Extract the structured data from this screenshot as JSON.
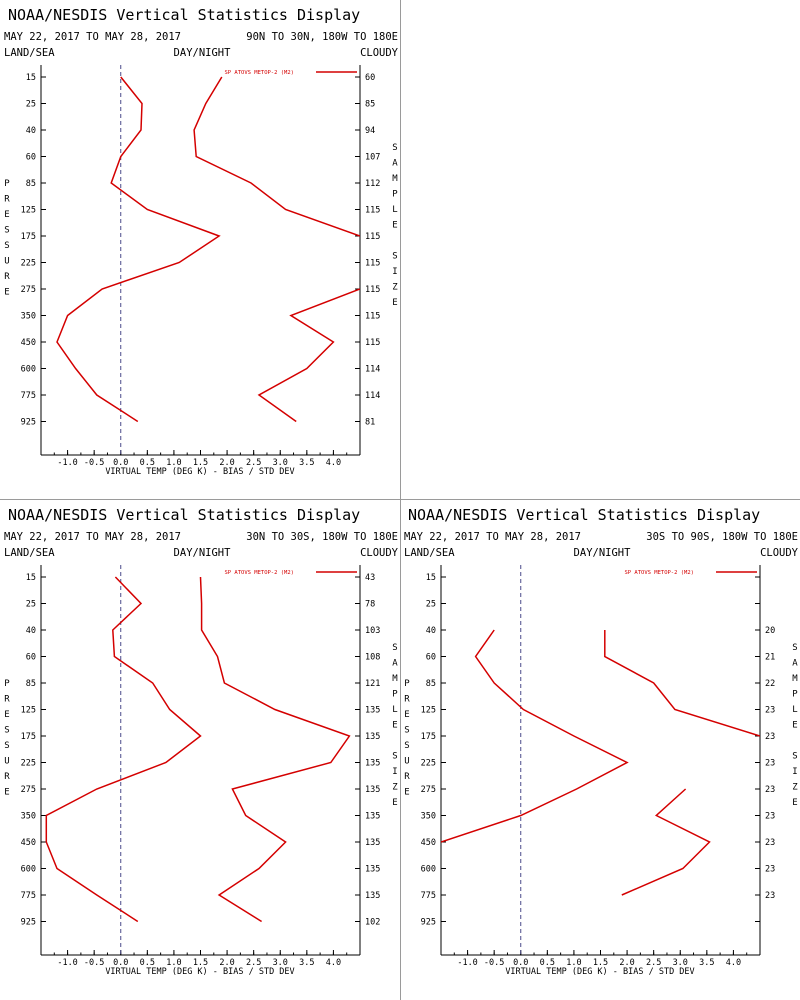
{
  "header": {
    "title": "NOAA/NESDIS Vertical Statistics Display",
    "left_label": "LAND/SEA",
    "mid_label": "DAY/NIGHT",
    "right_label": "CLOUDY",
    "date_range": "MAY 22, 2017 TO MAY 28, 2017"
  },
  "colors": {
    "series": "#d40000",
    "zero_line": "#4a4a8a",
    "axis": "#000000"
  },
  "chart_data": [
    {
      "type": "line",
      "region": "90N TO 30N, 180W TO 180E",
      "legend": "SP ATOVS METOP-2 (M2)",
      "xlabel": "VIRTUAL TEMP (DEG K) - BIAS / STD DEV",
      "ylabel": "PRESSURE",
      "y2label": "SAMPLE SIZE",
      "xlim": [
        -1.5,
        4.5
      ],
      "xticks": [
        -1.0,
        -0.5,
        0.0,
        0.5,
        1.0,
        1.5,
        2.0,
        2.5,
        3.0,
        3.5,
        4.0
      ],
      "pressure_levels": [
        15,
        25,
        40,
        60,
        85,
        125,
        175,
        225,
        275,
        350,
        450,
        600,
        775,
        925
      ],
      "sample_size": [
        "60",
        "85",
        "94",
        "107",
        "112",
        "115",
        "115",
        "115",
        "115",
        "115",
        "115",
        "114",
        "114",
        "81"
      ],
      "series": [
        {
          "role": "bias",
          "pressure": [
            15,
            25,
            40,
            60,
            85,
            125,
            175,
            225,
            275,
            350,
            450,
            600,
            775,
            925
          ],
          "values": [
            0.0,
            0.4,
            0.38,
            0.0,
            -0.18,
            0.5,
            1.85,
            1.1,
            -0.35,
            -1.0,
            -1.2,
            -0.85,
            -0.45,
            0.32
          ]
        },
        {
          "role": "std_dev",
          "pressure": [
            15,
            25,
            40,
            60,
            85,
            125,
            175,
            225,
            275,
            350,
            450,
            600,
            775,
            925
          ],
          "values": [
            1.9,
            1.6,
            1.38,
            1.42,
            2.45,
            3.1,
            4.5,
            null,
            4.5,
            3.2,
            4.0,
            3.5,
            2.6,
            3.3
          ]
        }
      ]
    },
    {
      "type": "line",
      "region": "30N TO 30S, 180W TO 180E",
      "legend": "SP ATOVS METOP-2 (M2)",
      "xlabel": "VIRTUAL TEMP (DEG K) - BIAS / STD DEV",
      "ylabel": "PRESSURE",
      "y2label": "SAMPLE SIZE",
      "xlim": [
        -1.5,
        4.5
      ],
      "xticks": [
        -1.0,
        -0.5,
        0.0,
        0.5,
        1.0,
        1.5,
        2.0,
        2.5,
        3.0,
        3.5,
        4.0
      ],
      "pressure_levels": [
        15,
        25,
        40,
        60,
        85,
        125,
        175,
        225,
        275,
        350,
        450,
        600,
        775,
        925
      ],
      "sample_size": [
        "43",
        "78",
        "103",
        "108",
        "121",
        "135",
        "135",
        "135",
        "135",
        "135",
        "135",
        "135",
        "135",
        "102"
      ],
      "series": [
        {
          "role": "bias",
          "pressure": [
            15,
            25,
            40,
            60,
            85,
            125,
            175,
            225,
            275,
            350,
            450,
            600,
            775,
            925
          ],
          "values": [
            -0.1,
            0.38,
            -0.15,
            -0.12,
            0.6,
            0.92,
            1.5,
            0.85,
            -0.45,
            -1.4,
            -1.4,
            -1.2,
            -0.45,
            0.32
          ]
        },
        {
          "role": "std_dev",
          "pressure": [
            15,
            25,
            40,
            60,
            85,
            125,
            175,
            225,
            275,
            350,
            450,
            600,
            775,
            925
          ],
          "values": [
            1.5,
            1.52,
            1.52,
            1.82,
            1.95,
            2.9,
            4.3,
            3.95,
            2.1,
            2.35,
            3.1,
            2.6,
            1.85,
            2.65
          ]
        }
      ]
    },
    {
      "type": "line",
      "region": "30S TO 90S, 180W TO 180E",
      "legend": "SP ATOVS METOP-2 (M2)",
      "xlabel": "VIRTUAL TEMP (DEG K) - BIAS / STD DEV",
      "ylabel": "PRESSURE",
      "y2label": "SAMPLE SIZE",
      "xlim": [
        -1.5,
        4.5
      ],
      "xticks": [
        -1.0,
        -0.5,
        0.0,
        0.5,
        1.0,
        1.5,
        2.0,
        2.5,
        3.0,
        3.5,
        4.0
      ],
      "pressure_levels": [
        15,
        25,
        40,
        60,
        85,
        125,
        175,
        225,
        275,
        350,
        450,
        600,
        775,
        925
      ],
      "sample_size": [
        "",
        "",
        "20",
        "21",
        "22",
        "23",
        "23",
        "23",
        "23",
        "23",
        "23",
        "23",
        "23",
        ""
      ],
      "series": [
        {
          "role": "bias",
          "pressure": [
            40,
            60,
            85,
            125,
            175,
            225,
            275,
            350,
            450
          ],
          "values": [
            -0.5,
            -0.85,
            -0.5,
            0.05,
            1.0,
            2.0,
            1.05,
            0.0,
            -1.5
          ]
        },
        {
          "role": "std_dev",
          "pressure": [
            40,
            60,
            85,
            125,
            175,
            225,
            275,
            350,
            450,
            600,
            775
          ],
          "values": [
            1.58,
            1.58,
            2.5,
            2.9,
            4.5,
            null,
            3.1,
            2.55,
            3.55,
            3.05,
            1.9
          ]
        }
      ]
    }
  ]
}
